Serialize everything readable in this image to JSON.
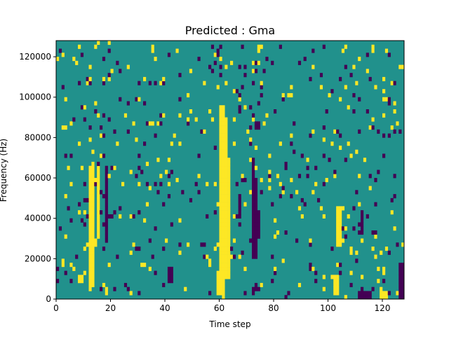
{
  "chart_data": {
    "type": "heatmap",
    "title": "Predicted : Gma",
    "xlabel": "Time step",
    "ylabel": "Frequency (Hz)",
    "xlim": [
      0,
      128
    ],
    "ylim": [
      0,
      128000
    ],
    "x_ticks": [
      0,
      20,
      40,
      60,
      80,
      100,
      120
    ],
    "y_ticks": [
      0,
      20000,
      40000,
      60000,
      80000,
      100000,
      120000
    ],
    "x_tick_labels": [
      "0",
      "20",
      "40",
      "60",
      "80",
      "100",
      "120"
    ],
    "y_tick_labels": [
      "0",
      "20000",
      "40000",
      "60000",
      "80000",
      "100000",
      "120000"
    ],
    "n_time_steps": 128,
    "n_freq_bins": 64,
    "colors": {
      "background": "#21918c",
      "high": "#fde725",
      "low": "#440154"
    },
    "high_bands": [
      {
        "t": [
          12,
          14
        ],
        "f": [
          6000,
          66000
        ]
      },
      {
        "t": [
          15,
          16
        ],
        "f": [
          30000,
          66000
        ]
      },
      {
        "t": [
          60,
          63
        ],
        "f": [
          10000,
          90000
        ]
      },
      {
        "t": [
          63,
          64
        ],
        "f": [
          10000,
          70000
        ]
      },
      {
        "t": [
          59,
          62
        ],
        "f": [
          2000,
          14000
        ]
      },
      {
        "t": [
          60,
          62
        ],
        "f": [
          90000,
          96000
        ]
      },
      {
        "t": [
          102,
          104
        ],
        "f": [
          2000,
          12000
        ]
      },
      {
        "t": [
          103,
          105
        ],
        "f": [
          26000,
          46000
        ]
      },
      {
        "t": [
          119,
          122
        ],
        "f": [
          0,
          4000
        ]
      },
      {
        "t": [
          8,
          10
        ],
        "f": [
          8000,
          12000
        ]
      }
    ],
    "low_bands": [
      {
        "t": [
          18,
          19
        ],
        "f": [
          28000,
          66000
        ]
      },
      {
        "t": [
          72,
          73
        ],
        "f": [
          20000,
          70000
        ]
      },
      {
        "t": [
          73,
          74
        ],
        "f": [
          20000,
          60000
        ]
      },
      {
        "t": [
          74,
          75
        ],
        "f": [
          30000,
          44000
        ]
      },
      {
        "t": [
          67,
          68
        ],
        "f": [
          40000,
          52000
        ]
      },
      {
        "t": [
          112,
          113
        ],
        "f": [
          32000,
          44000
        ]
      },
      {
        "t": [
          111,
          116
        ],
        "f": [
          0,
          4000
        ]
      },
      {
        "t": [
          126,
          128
        ],
        "f": [
          0,
          18000
        ]
      },
      {
        "t": [
          73,
          75
        ],
        "f": [
          84000,
          88000
        ]
      },
      {
        "t": [
          41,
          43
        ],
        "f": [
          8000,
          16000
        ]
      }
    ],
    "seed": 7
  }
}
